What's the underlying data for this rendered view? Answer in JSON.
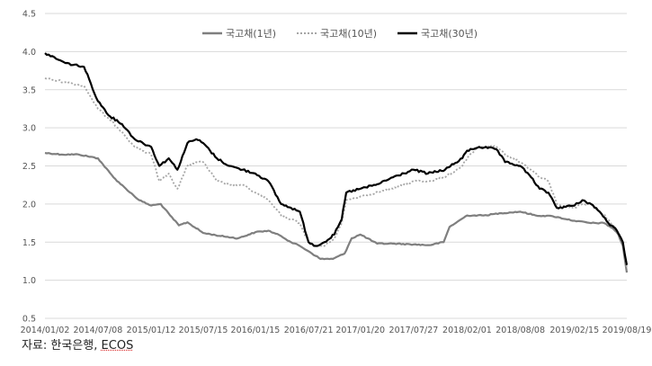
{
  "source": {
    "prefix": "자료: 한국은행, ",
    "name": "ECOS"
  },
  "chart_data": {
    "type": "line",
    "title": "",
    "xlabel": "",
    "ylabel": "",
    "ylim": [
      0.5,
      4.5
    ],
    "yticks": [
      "0.5",
      "1.0",
      "1.5",
      "2.0",
      "2.5",
      "3.0",
      "3.5",
      "4.0",
      "4.5"
    ],
    "x_tick_labels": [
      "2014/01/02",
      "2014/07/08",
      "2015/01/12",
      "2015/07/15",
      "2016/01/15",
      "2016/07/21",
      "2017/01/20",
      "2017/07/27",
      "2018/02/01",
      "2018/08/08",
      "2019/02/15",
      "2019/08/19"
    ],
    "x_range": [
      "2014/01/02",
      "2019/08/19"
    ],
    "grid": "horizontal",
    "legend": "top-center",
    "colors": {
      "y1": "#7f7f7f",
      "y10": "#a6a6a6",
      "y30": "#000000"
    },
    "series": [
      {
        "name": "국고채(1년)",
        "style": "solid",
        "x": [
          "2014/01/02",
          "2014/03/01",
          "2014/05/01",
          "2014/07/08",
          "2014/09/01",
          "2014/10/15",
          "2014/12/01",
          "2015/01/12",
          "2015/02/15",
          "2015/03/20",
          "2015/04/20",
          "2015/05/20",
          "2015/07/15",
          "2015/09/15",
          "2015/11/15",
          "2016/01/15",
          "2016/03/01",
          "2016/04/15",
          "2016/05/20",
          "2016/06/20",
          "2016/07/21",
          "2016/09/01",
          "2016/10/15",
          "2016/11/25",
          "2016/12/20",
          "2017/01/20",
          "2017/03/20",
          "2017/05/20",
          "2017/07/27",
          "2017/09/20",
          "2017/11/10",
          "2017/12/01",
          "2018/02/01",
          "2018/04/01",
          "2018/06/01",
          "2018/08/08",
          "2018/10/01",
          "2018/11/30",
          "2019/02/15",
          "2019/04/15",
          "2019/05/31",
          "2019/07/01",
          "2019/07/20",
          "2019/08/05",
          "2019/08/19"
        ],
        "values": [
          2.67,
          2.65,
          2.65,
          2.6,
          2.35,
          2.2,
          2.05,
          1.98,
          2.0,
          1.85,
          1.72,
          1.76,
          1.62,
          1.58,
          1.55,
          1.63,
          1.65,
          1.58,
          1.5,
          1.45,
          1.38,
          1.28,
          1.28,
          1.35,
          1.55,
          1.6,
          1.48,
          1.48,
          1.47,
          1.46,
          1.5,
          1.7,
          1.85,
          1.85,
          1.88,
          1.9,
          1.85,
          1.84,
          1.78,
          1.75,
          1.75,
          1.68,
          1.6,
          1.45,
          1.1
        ]
      },
      {
        "name": "국고채(10년)",
        "style": "dotted",
        "x": [
          "2014/01/02",
          "2014/03/15",
          "2014/05/20",
          "2014/07/08",
          "2014/08/20",
          "2014/10/01",
          "2014/11/15",
          "2015/01/12",
          "2015/02/10",
          "2015/03/15",
          "2015/04/15",
          "2015/05/20",
          "2015/06/20",
          "2015/07/15",
          "2015/09/01",
          "2015/10/15",
          "2015/12/01",
          "2016/01/15",
          "2016/03/01",
          "2016/04/15",
          "2016/05/20",
          "2016/06/20",
          "2016/07/21",
          "2016/08/15",
          "2016/09/15",
          "2016/10/20",
          "2016/11/15",
          "2016/12/01",
          "2017/01/20",
          "2017/03/15",
          "2017/05/15",
          "2017/07/27",
          "2017/09/15",
          "2017/11/15",
          "2018/01/15",
          "2018/02/01",
          "2018/03/15",
          "2018/05/15",
          "2018/06/15",
          "2018/08/08",
          "2018/09/15",
          "2018/10/15",
          "2018/11/15",
          "2018/12/15",
          "2019/02/15",
          "2019/03/15",
          "2019/04/15",
          "2019/05/15",
          "2019/06/15",
          "2019/07/15",
          "2019/08/05",
          "2019/08/19"
        ],
        "values": [
          3.65,
          3.6,
          3.55,
          3.25,
          3.1,
          2.95,
          2.75,
          2.65,
          2.3,
          2.4,
          2.2,
          2.5,
          2.55,
          2.55,
          2.3,
          2.25,
          2.25,
          2.15,
          2.05,
          1.85,
          1.8,
          1.75,
          1.5,
          1.45,
          1.45,
          1.55,
          1.75,
          2.05,
          2.1,
          2.15,
          2.2,
          2.3,
          2.3,
          2.35,
          2.5,
          2.6,
          2.75,
          2.75,
          2.65,
          2.55,
          2.45,
          2.35,
          2.3,
          2.0,
          1.95,
          2.0,
          2.0,
          1.9,
          1.8,
          1.65,
          1.5,
          1.15
        ]
      },
      {
        "name": "국고채(30년)",
        "style": "solid",
        "x": [
          "2014/01/02",
          "2014/03/15",
          "2014/05/20",
          "2014/07/08",
          "2014/08/20",
          "2014/10/01",
          "2014/11/15",
          "2015/01/12",
          "2015/02/10",
          "2015/03/15",
          "2015/04/15",
          "2015/05/20",
          "2015/06/20",
          "2015/07/15",
          "2015/09/01",
          "2015/10/15",
          "2015/12/01",
          "2016/01/15",
          "2016/03/01",
          "2016/04/15",
          "2016/05/20",
          "2016/06/20",
          "2016/07/21",
          "2016/08/15",
          "2016/09/15",
          "2016/10/20",
          "2016/11/15",
          "2016/12/01",
          "2017/01/20",
          "2017/03/15",
          "2017/05/15",
          "2017/07/27",
          "2017/09/15",
          "2017/11/15",
          "2018/01/15",
          "2018/02/01",
          "2018/03/15",
          "2018/05/15",
          "2018/06/15",
          "2018/08/08",
          "2018/09/15",
          "2018/10/15",
          "2018/11/15",
          "2018/12/15",
          "2019/02/15",
          "2019/03/15",
          "2019/04/15",
          "2019/05/15",
          "2019/06/15",
          "2019/07/15",
          "2019/08/05",
          "2019/08/19"
        ],
        "values": [
          3.98,
          3.85,
          3.8,
          3.35,
          3.15,
          3.05,
          2.85,
          2.75,
          2.5,
          2.6,
          2.45,
          2.8,
          2.85,
          2.8,
          2.6,
          2.5,
          2.45,
          2.4,
          2.3,
          2.0,
          1.95,
          1.9,
          1.5,
          1.45,
          1.5,
          1.6,
          1.8,
          2.15,
          2.2,
          2.25,
          2.35,
          2.45,
          2.4,
          2.45,
          2.6,
          2.7,
          2.75,
          2.72,
          2.55,
          2.5,
          2.35,
          2.2,
          2.15,
          1.95,
          1.98,
          2.05,
          2.0,
          1.9,
          1.75,
          1.65,
          1.5,
          1.2
        ]
      }
    ]
  }
}
